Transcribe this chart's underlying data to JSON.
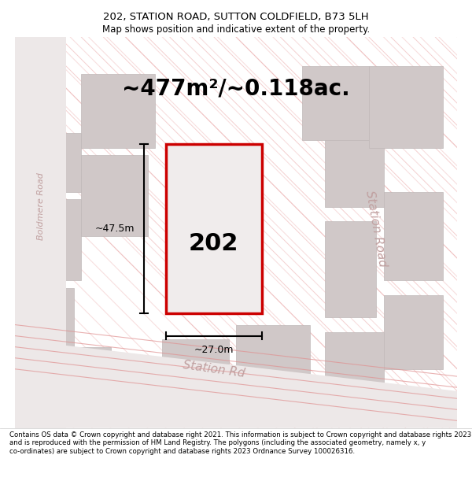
{
  "title_line1": "202, STATION ROAD, SUTTON COLDFIELD, B73 5LH",
  "title_line2": "Map shows position and indicative extent of the property.",
  "area_text": "~477m²/~0.118ac.",
  "label_202": "202",
  "dim_height": "~47.5m",
  "dim_width": "~27.0m",
  "road_label_bottom": "Station Rd",
  "road_label_right": "Station Road",
  "road_label_left": "Boldmere Road",
  "footer": "Contains OS data © Crown copyright and database right 2021. This information is subject to Crown copyright and database rights 2023 and is reproduced with the permission of HM Land Registry. The polygons (including the associated geometry, namely x, y co-ordinates) are subject to Crown copyright and database rights 2023 Ordnance Survey 100026316.",
  "bg_color": "#f5f0f0",
  "map_bg": "#f9f5f5",
  "plot_color": "#cc0000",
  "road_fill": "#e8e0e0",
  "building_fill": "#d8d0d0",
  "highlight_fill": "#e8e8e8",
  "fig_width": 6.0,
  "fig_height": 6.25
}
